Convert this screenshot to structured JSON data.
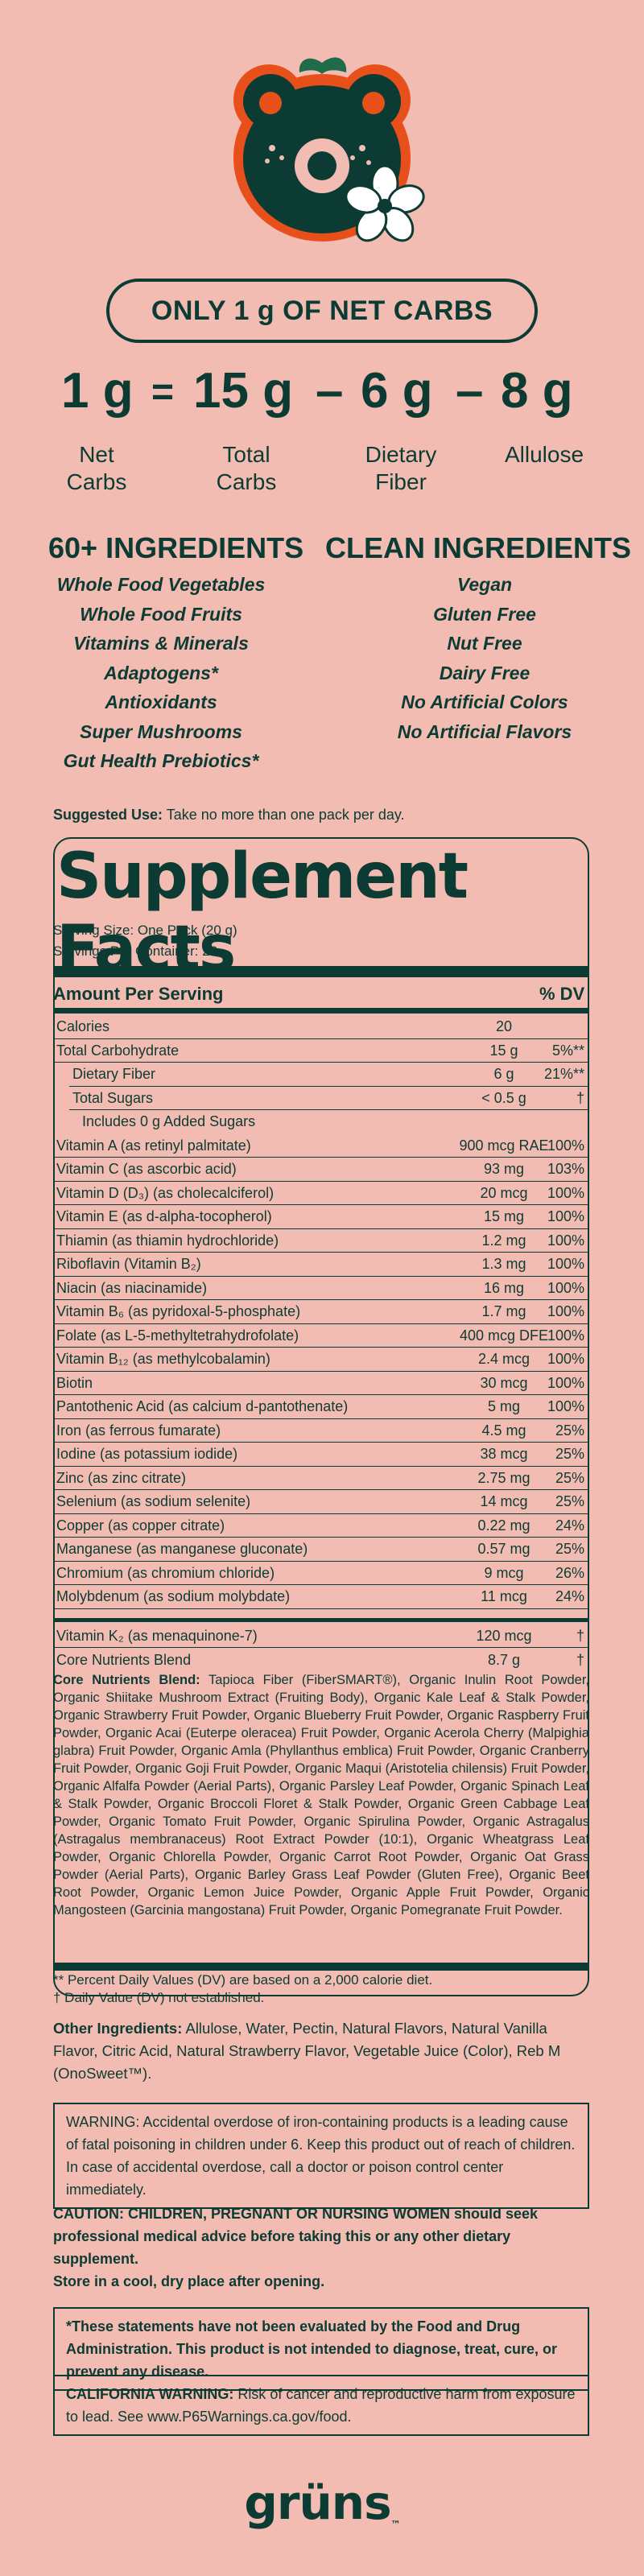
{
  "colors": {
    "background": "#f3bcb2",
    "ink": "#0c3b33",
    "accent": "#e8501b"
  },
  "logo": {
    "icon": "gruns-bear-mascot-icon",
    "flower": "flower-icon"
  },
  "banner": {
    "text": "ONLY 1 g OF NET CARBS"
  },
  "equation": {
    "net": "1 g",
    "eq": "=",
    "total": "15 g",
    "minus1": "–",
    "fiber": "6 g",
    "minus2": "–",
    "allulose": "8 g",
    "labels": {
      "net": "Net\nCarbs",
      "total": "Total\nCarbs",
      "fiber": "Dietary\nFiber",
      "allulose": "Allulose"
    }
  },
  "left_column": {
    "title": "60+ INGREDIENTS",
    "items": [
      "Whole Food Vegetables",
      "Whole Food Fruits",
      "Vitamins & Minerals",
      "Adaptogens*",
      "Antioxidants",
      "Super Mushrooms",
      "Gut Health Prebiotics*"
    ]
  },
  "right_column": {
    "title": "CLEAN INGREDIENTS",
    "items": [
      "Vegan",
      "Gluten Free",
      "Nut Free",
      "Dairy Free",
      "No Artificial Colors",
      "No Artificial Flavors"
    ]
  },
  "suggested": {
    "label": "Suggested Use:",
    "text": " Take no more than one pack per day."
  },
  "facts": {
    "title": "Supplement Facts",
    "serving_size": "Serving Size: One Pack (20 g)",
    "servings": "Servings Per Container: 28",
    "amount_header": "Amount Per Serving",
    "dv_header": "% DV",
    "rows": [
      {
        "name": "Calories",
        "amount": "20",
        "dv": ""
      },
      {
        "name": "Total Carbohydrate",
        "amount": "15 g",
        "dv": "5%**"
      },
      {
        "name": "Dietary Fiber",
        "amount": "6 g",
        "dv": "21%**",
        "indent": 1
      },
      {
        "name": "Total Sugars",
        "amount": "< 0.5 g",
        "dv": "†",
        "indent": 1
      },
      {
        "name": "Includes 0 g Added Sugars",
        "amount": "",
        "dv": "",
        "indent": 2
      },
      {
        "name": "Vitamin A (as retinyl palmitate)",
        "amount": "900 mcg RAE",
        "dv": "100%"
      },
      {
        "name": "Vitamin C (as ascorbic acid)",
        "amount": "93 mg",
        "dv": "103%"
      },
      {
        "name": "Vitamin D (D₃) (as cholecalciferol)",
        "amount": "20 mcg",
        "dv": "100%"
      },
      {
        "name": "Vitamin E (as d-alpha-tocopherol)",
        "amount": "15 mg",
        "dv": "100%"
      },
      {
        "name": "Thiamin (as thiamin hydrochloride)",
        "amount": "1.2 mg",
        "dv": "100%"
      },
      {
        "name": "Riboflavin (Vitamin B₂)",
        "amount": "1.3 mg",
        "dv": "100%"
      },
      {
        "name": "Niacin (as niacinamide)",
        "amount": "16 mg",
        "dv": "100%"
      },
      {
        "name": "Vitamin B₆ (as pyridoxal-5-phosphate)",
        "amount": "1.7 mg",
        "dv": "100%"
      },
      {
        "name": "Folate (as L-5-methyltetrahydrofolate)",
        "amount": "400 mcg DFE",
        "dv": "100%"
      },
      {
        "name": "Vitamin B₁₂ (as methylcobalamin)",
        "amount": "2.4 mcg",
        "dv": "100%"
      },
      {
        "name": "Biotin",
        "amount": "30 mcg",
        "dv": "100%"
      },
      {
        "name": "Pantothenic Acid (as calcium d-pantothenate)",
        "amount": "5 mg",
        "dv": "100%"
      },
      {
        "name": "Iron (as ferrous fumarate)",
        "amount": "4.5 mg",
        "dv": "25%"
      },
      {
        "name": "Iodine (as potassium iodide)",
        "amount": "38 mcg",
        "dv": "25%"
      },
      {
        "name": "Zinc (as zinc citrate)",
        "amount": "2.75 mg",
        "dv": "25%"
      },
      {
        "name": "Selenium (as sodium selenite)",
        "amount": "14 mcg",
        "dv": "25%"
      },
      {
        "name": "Copper (as copper citrate)",
        "amount": "0.22 mg",
        "dv": "24%"
      },
      {
        "name": "Manganese (as manganese gluconate)",
        "amount": "0.57 mg",
        "dv": "25%"
      },
      {
        "name": "Chromium (as chromium chloride)",
        "amount": "9 mcg",
        "dv": "26%"
      },
      {
        "name": "Molybdenum (as sodium molybdate)",
        "amount": "11 mcg",
        "dv": "24%"
      }
    ],
    "k2": {
      "name": "Vitamin K₂ (as menaquinone-7)",
      "amount": "120 mcg",
      "dv": "†"
    },
    "core": {
      "name": "Core Nutrients Blend",
      "amount": "8.7 g",
      "dv": "†"
    },
    "blend_label": "Core Nutrients Blend:",
    "blend_text": " Tapioca Fiber (FiberSMART®), Organic Inulin Root Powder, Organic Shiitake Mushroom Extract (Fruiting Body), Organic Kale Leaf & Stalk Powder, Organic Strawberry Fruit Powder, Organic Blueberry Fruit Powder, Organic Raspberry Fruit Powder, Organic Acai (Euterpe oleracea) Fruit Powder, Organic Acerola Cherry (Malpighia glabra) Fruit Powder, Organic Amla (Phyllanthus emblica) Fruit Powder, Organic Cranberry Fruit Powder, Organic Goji Fruit Powder, Organic Maqui (Aristotelia chilensis) Fruit Powder, Organic Alfalfa Powder (Aerial Parts), Organic Parsley Leaf Powder, Organic Spinach Leaf & Stalk Powder, Organic Broccoli Floret & Stalk Powder, Organic Green Cabbage Leaf Powder, Organic Tomato Fruit Powder, Organic Spirulina Powder, Organic Astragalus (Astragalus membranaceus) Root Extract Powder (10:1), Organic Wheatgrass Leaf Powder, Organic Chlorella Powder, Organic Carrot Root Powder, Organic Oat Grass Powder (Aerial Parts), Organic Barley Grass Leaf Powder (Gluten Free), Organic Beet Root Powder, Organic Lemon Juice Powder, Organic Apple Fruit Powder, Organic Mangosteen (Garcinia mangostana) Fruit Powder, Organic Pomegranate Fruit Powder.",
    "footnote1": "** Percent Daily Values (DV) are based on a 2,000 calorie diet.",
    "footnote2": "† Daily Value (DV) not established."
  },
  "other": {
    "label": "Other Ingredients:",
    "text": " Allulose, Water, Pectin, Natural Flavors, Natural Vanilla Flavor, Citric Acid, Natural Strawberry Flavor, Vegetable Juice (Color), Reb M (OnoSweet™)."
  },
  "warning_iron": "WARNING: Accidental overdose of iron-containing products is a leading cause of fatal poisoning in children under 6. Keep this product out of reach of children. In case of accidental overdose, call a doctor or poison control center immediately.",
  "caution": "CAUTION: CHILDREN, PREGNANT OR NURSING WOMEN should seek professional medical advice before taking this or any other dietary supplement.",
  "storage": "Store in a cool, dry place after opening.",
  "fda": "*These statements have not been evaluated by the Food and Drug Administration. This product is not intended to diagnose, treat, cure, or prevent any disease.",
  "ca": {
    "label": "CALIFORNIA WARNING:",
    "text": " Risk of cancer and reproductive harm from exposure to lead. See www.P65Warnings.ca.gov/food."
  },
  "brand": "grüns",
  "tm": "™"
}
